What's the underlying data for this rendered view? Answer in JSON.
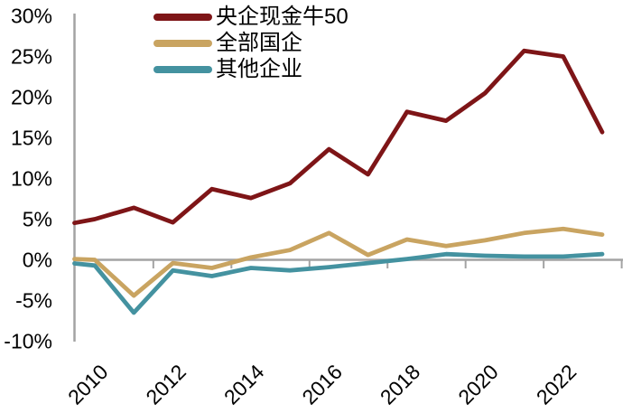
{
  "chart_data": {
    "type": "line",
    "x": [
      2009,
      2010,
      2011,
      2012,
      2013,
      2014,
      2015,
      2016,
      2017,
      2018,
      2019,
      2020,
      2021,
      2022,
      2023
    ],
    "x_tick_labels": [
      "2010",
      "2012",
      "2014",
      "2016",
      "2018",
      "2020",
      "2022"
    ],
    "series": [
      {
        "name": "央企现金牛50",
        "color": "#7e1517",
        "values": [
          4.1,
          5.0,
          6.4,
          4.6,
          8.7,
          7.6,
          9.4,
          13.6,
          10.5,
          18.2,
          17.1,
          20.5,
          25.7,
          25.0,
          15.7
        ]
      },
      {
        "name": "全部国企",
        "color": "#c9a461",
        "values": [
          0.2,
          0.0,
          -4.4,
          -0.4,
          -1.0,
          0.3,
          1.2,
          3.3,
          0.6,
          2.5,
          1.7,
          2.4,
          3.3,
          3.8,
          3.1
        ]
      },
      {
        "name": "其他企业",
        "color": "#4492a0",
        "values": [
          -0.2,
          -0.7,
          -6.5,
          -1.3,
          -2.0,
          -1.0,
          -1.3,
          -0.9,
          -0.4,
          0.1,
          0.7,
          0.5,
          0.4,
          0.4,
          0.7
        ]
      }
    ],
    "y_tick_labels": [
      "30%",
      "25%",
      "20%",
      "15%",
      "10%",
      "5%",
      "0%",
      "-5%",
      "-10%"
    ],
    "y_tick_values": [
      30,
      25,
      20,
      15,
      10,
      5,
      0,
      -5,
      -10
    ],
    "ylim": [
      -10,
      30
    ],
    "xlim": [
      2009.47,
      2023.53
    ],
    "grid": false,
    "legend_position": "top-left-inside",
    "axis_color": "#a3a3a3",
    "zero_baseline": true
  }
}
